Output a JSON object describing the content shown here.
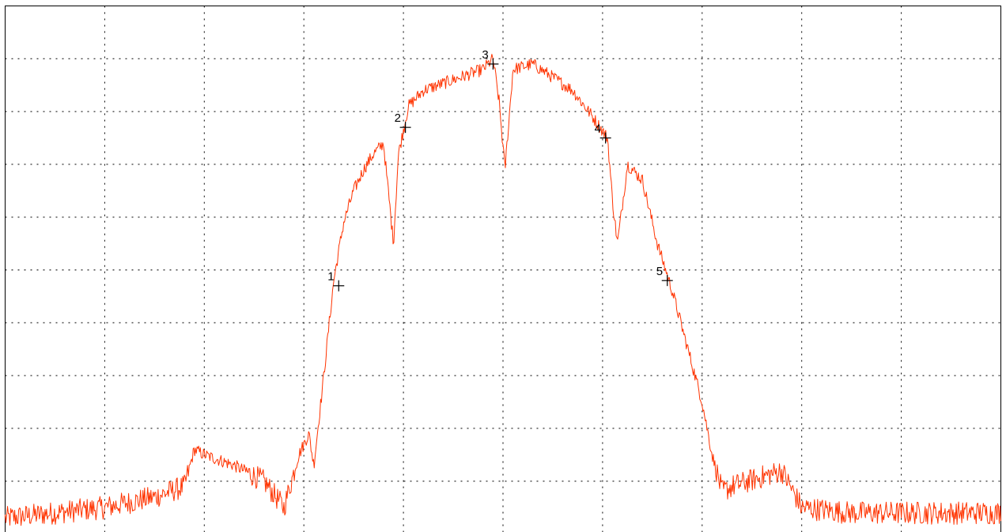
{
  "chart_data": {
    "type": "line",
    "title": "",
    "xlabel": "",
    "ylabel": "",
    "xlim": [
      0,
      10
    ],
    "ylim": [
      0,
      10
    ],
    "grid": true,
    "colors": {
      "trace": "#ff3300",
      "marker": "#000000",
      "grid": "#000000"
    },
    "series": [
      {
        "x": [
          0.0,
          0.5,
          1.0,
          1.5,
          1.8,
          1.9,
          2.0,
          2.3,
          2.6,
          2.8,
          2.95,
          3.05,
          3.1,
          3.2,
          3.3,
          3.4,
          3.5,
          3.6,
          3.7,
          3.8,
          3.9,
          3.95,
          4.05,
          4.2,
          4.5,
          4.8,
          4.9,
          4.96,
          5.02,
          5.1,
          5.3,
          5.7,
          5.9,
          6.05,
          6.1,
          6.15,
          6.25,
          6.4,
          6.55,
          6.7,
          6.9,
          7.0,
          7.1,
          7.2,
          7.3,
          7.8,
          8.0,
          8.5,
          9.0,
          9.5,
          10.0
        ],
        "y": [
          0.3,
          0.4,
          0.5,
          0.7,
          0.9,
          1.6,
          1.5,
          1.3,
          1.0,
          0.5,
          1.5,
          1.9,
          1.3,
          3.0,
          4.8,
          5.9,
          6.5,
          6.9,
          7.2,
          7.4,
          5.5,
          7.2,
          8.1,
          8.4,
          8.6,
          8.8,
          9.0,
          8.2,
          6.9,
          8.8,
          8.9,
          8.4,
          7.9,
          7.5,
          6.3,
          5.5,
          7.0,
          6.7,
          5.5,
          4.6,
          3.2,
          2.5,
          1.5,
          0.8,
          0.9,
          1.2,
          0.5,
          0.4,
          0.4,
          0.4,
          0.4
        ]
      }
    ],
    "markers": [
      {
        "label": "1",
        "x": 3.35,
        "y": 4.7
      },
      {
        "label": "2",
        "x": 4.02,
        "y": 7.7
      },
      {
        "label": "3",
        "x": 4.9,
        "y": 8.9
      },
      {
        "label": "4",
        "x": 6.03,
        "y": 7.5
      },
      {
        "label": "5",
        "x": 6.65,
        "y": 4.8
      }
    ]
  }
}
